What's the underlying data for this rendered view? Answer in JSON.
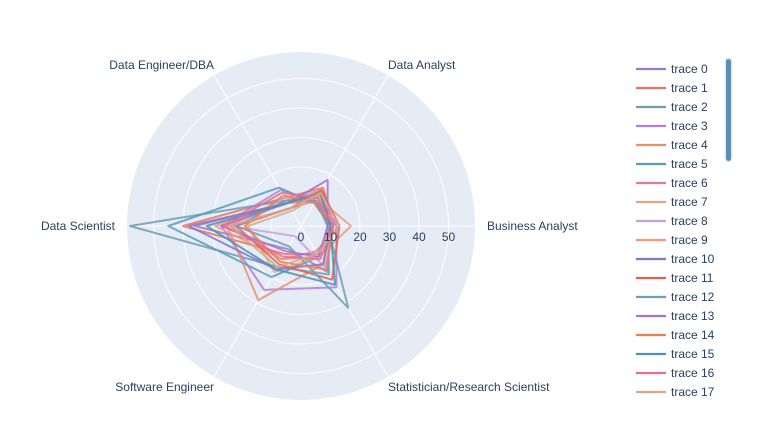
{
  "chart_data": {
    "type": "line",
    "subtype": "radar",
    "categories": [
      "Business Analyst",
      "Data Analyst",
      "Data Engineer/DBA",
      "Data Scientist",
      "Software Engineer",
      "Statistician/Research Scientist"
    ],
    "radial_ticks": [
      0,
      10,
      20,
      30,
      40,
      50
    ],
    "radial_range": [
      0,
      58
    ],
    "legend_position": "right",
    "grid": true,
    "colors": {
      "background": "#e5ecf6",
      "grid": "#ffffff",
      "text": "#2a3f5f",
      "scrollbar": "#5b8db8"
    },
    "series": [
      {
        "name": "trace 0",
        "color": "#9b7bc6",
        "values": [
          10,
          10,
          9,
          36,
          9,
          18
        ]
      },
      {
        "name": "trace 1",
        "color": "#e8745f",
        "values": [
          11,
          15,
          11,
          40,
          11,
          11
        ]
      },
      {
        "name": "trace 2",
        "color": "#6f9db0",
        "values": [
          9,
          12,
          10,
          58,
          16,
          19
        ]
      },
      {
        "name": "trace 3",
        "color": "#b57ed6",
        "values": [
          12,
          10,
          14,
          27,
          25,
          24
        ]
      },
      {
        "name": "trace 4",
        "color": "#ef8e6b",
        "values": [
          10,
          14,
          10,
          25,
          29,
          15
        ]
      },
      {
        "name": "trace 5",
        "color": "#5a9bb8",
        "values": [
          10,
          9,
          15,
          45,
          20,
          12
        ]
      },
      {
        "name": "trace 6",
        "color": "#e07a93",
        "values": [
          13,
          10,
          7,
          24,
          13,
          10
        ]
      },
      {
        "name": "trace 7",
        "color": "#d8a98e",
        "values": [
          10,
          12,
          6,
          18,
          18,
          12
        ]
      },
      {
        "name": "trace 8",
        "color": "#caa0dc",
        "values": [
          11,
          13,
          11,
          24,
          4,
          16
        ]
      },
      {
        "name": "trace 9",
        "color": "#f19a7b",
        "values": [
          17,
          11,
          9,
          29,
          13,
          12
        ]
      },
      {
        "name": "trace 10",
        "color": "#8d73c4",
        "values": [
          10,
          13,
          9,
          38,
          17,
          15
        ]
      },
      {
        "name": "trace 11",
        "color": "#e0624f",
        "values": [
          13,
          14,
          7,
          22,
          15,
          21
        ]
      },
      {
        "name": "trace 12",
        "color": "#6e9fb2",
        "values": [
          9,
          10,
          10,
          22,
          8,
          32
        ]
      },
      {
        "name": "trace 13",
        "color": "#a870d0",
        "values": [
          9,
          18,
          9,
          27,
          10,
          12
        ]
      },
      {
        "name": "trace 14",
        "color": "#ea7f55",
        "values": [
          11,
          9,
          12,
          19,
          14,
          17
        ]
      },
      {
        "name": "trace 15",
        "color": "#4f90b0",
        "values": [
          10,
          13,
          9,
          32,
          17,
          23
        ]
      },
      {
        "name": "trace 16",
        "color": "#e46f8a",
        "values": [
          11,
          11,
          13,
          26,
          12,
          13
        ]
      },
      {
        "name": "trace 17",
        "color": "#d9a58b",
        "values": [
          13,
          13,
          7,
          24,
          16,
          11
        ]
      }
    ]
  }
}
